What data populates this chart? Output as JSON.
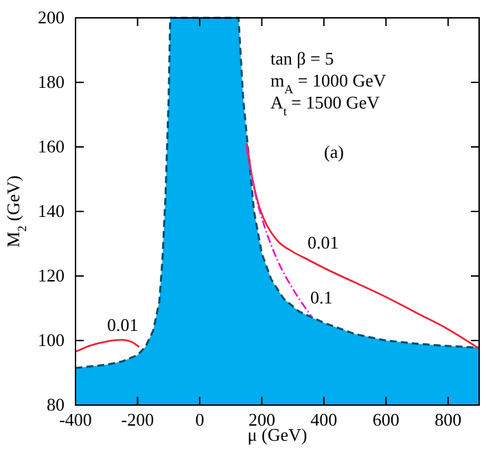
{
  "chart_data": {
    "type": "line",
    "xlabel": "μ (GeV)",
    "ylabel": "M$_{2}$ (GeV)",
    "xlim": [
      -400,
      900
    ],
    "xticks": [
      -400,
      -200,
      0,
      200,
      400,
      600,
      800
    ],
    "ylim": [
      80,
      200
    ],
    "yticks": [
      80,
      100,
      120,
      140,
      160,
      180,
      200
    ],
    "grid": false,
    "marker": "none",
    "series": [
      {
        "type": "area",
        "color": "#00adef",
        "line_style": "dashed",
        "x": [
          -400,
          -300,
          -250,
          -200,
          -175,
          -150,
          -130,
          -120,
          -110,
          -100,
          -95,
          125,
          140,
          155,
          175,
          200,
          230,
          270,
          320,
          400,
          500,
          600,
          700,
          800,
          900
        ],
        "values": [
          91.5,
          92.5,
          93.5,
          95.5,
          98,
          103,
          112,
          125,
          145,
          175,
          200,
          200,
          175,
          160,
          140,
          127,
          119,
          113,
          109,
          105.5,
          102,
          100,
          99,
          98.3,
          97.8
        ]
      },
      {
        "color": "#ee2233",
        "line_style": "solid",
        "x": [
          -400,
          -350,
          -300,
          -250,
          -220,
          -195
        ],
        "values": [
          96.5,
          98.5,
          99.7,
          100.2,
          99.6,
          98
        ]
      },
      {
        "color": "#ee2233",
        "line_style": "solid",
        "x": [
          152,
          170,
          190,
          215,
          250,
          300,
          350,
          400,
          500,
          600,
          700,
          800,
          900
        ],
        "values": [
          161,
          150,
          142,
          136,
          131,
          127.5,
          125,
          122.5,
          118,
          113.5,
          108.5,
          103.5,
          97.5
        ]
      },
      {
        "color": "#e020c0",
        "line_style": "dashed",
        "x": [
          150,
          180,
          210,
          250,
          300,
          360
        ],
        "values": [
          160,
          145,
          135,
          125,
          116,
          107.5
        ]
      }
    ],
    "annotations": [
      "tan β = 5",
      "m$_{A}$ = 1000 GeV",
      "A$_{t}$ = 1500 GeV",
      "(a)",
      "0.01",
      "0.01",
      "0.1"
    ]
  }
}
